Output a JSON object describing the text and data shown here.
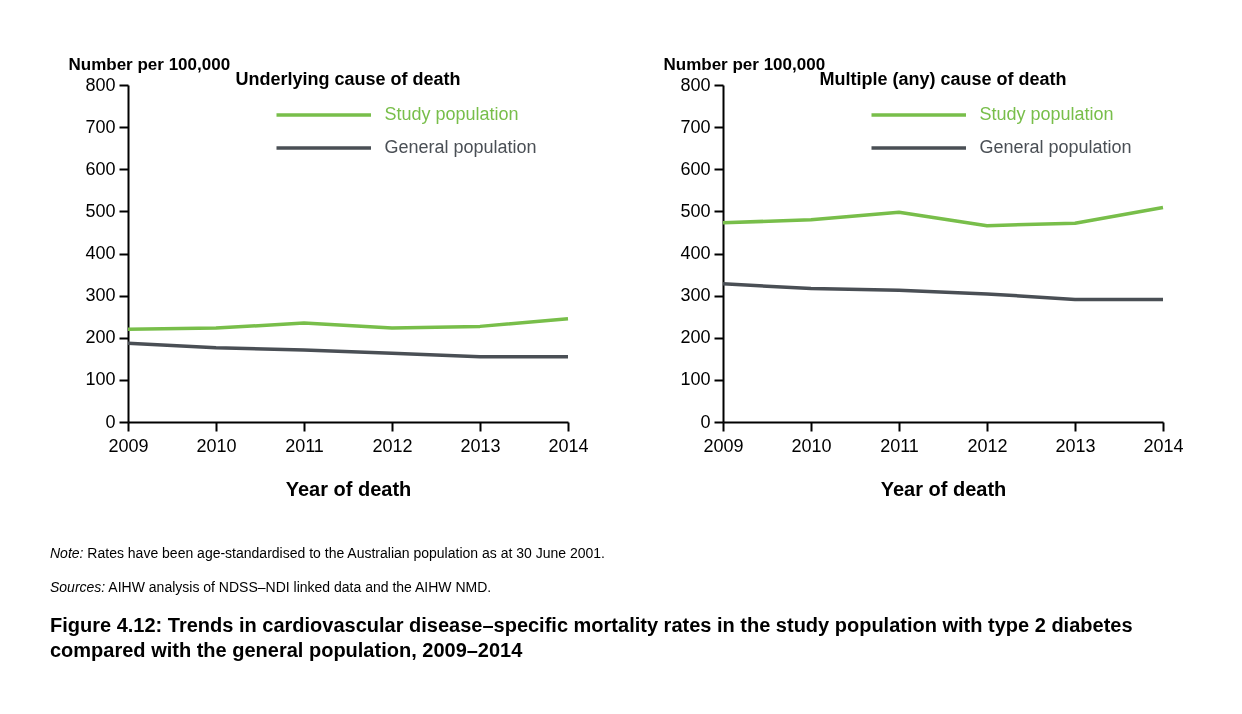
{
  "chart_data": [
    {
      "type": "line",
      "title": "Underlying cause of death",
      "xlabel": "Year of death",
      "ylabel": "Number per 100,000",
      "x": [
        2009,
        2010,
        2011,
        2012,
        2013,
        2014
      ],
      "xlim": [
        2009,
        2014
      ],
      "xticks": [
        2009,
        2010,
        2011,
        2012,
        2013,
        2014
      ],
      "ylim": [
        0,
        800
      ],
      "yticks": [
        0,
        100,
        200,
        300,
        400,
        500,
        600,
        700,
        800
      ],
      "grid": false,
      "legend": "top right",
      "line_style": "solid",
      "series": [
        {
          "name": "Study population",
          "color": "#78be4a",
          "values": [
            220,
            223,
            235,
            223,
            227,
            245
          ]
        },
        {
          "name": "General population",
          "color": "#4a4f55",
          "values": [
            187,
            176,
            171,
            163,
            155,
            155
          ]
        }
      ]
    },
    {
      "type": "line",
      "title": "Multiple (any) cause of death",
      "xlabel": "Year of death",
      "ylabel": "Number per 100,000",
      "x": [
        2009,
        2010,
        2011,
        2012,
        2013,
        2014
      ],
      "xlim": [
        2009,
        2014
      ],
      "xticks": [
        2009,
        2010,
        2011,
        2012,
        2013,
        2014
      ],
      "ylim": [
        0,
        800
      ],
      "yticks": [
        0,
        100,
        200,
        300,
        400,
        500,
        600,
        700,
        800
      ],
      "grid": false,
      "legend": "top right",
      "line_style": "solid",
      "series": [
        {
          "name": "Study population",
          "color": "#78be4a",
          "values": [
            473,
            480,
            498,
            466,
            472,
            509
          ]
        },
        {
          "name": "General population",
          "color": "#4a4f55",
          "values": [
            328,
            317,
            313,
            304,
            291,
            291
          ]
        }
      ],
      "annotations": [
        "Note: Rates have been age-standardised to the Australian population as at 30 June 2001.",
        "Sources: AIHW analysis of NDSS–NDI linked data and the AIHW NMD.",
        "Figure 4.12: Trends in cardiovascular disease–specific mortality rates in the study population with type 2 diabetes compared with the general population, 2009–2014"
      ]
    }
  ]
}
